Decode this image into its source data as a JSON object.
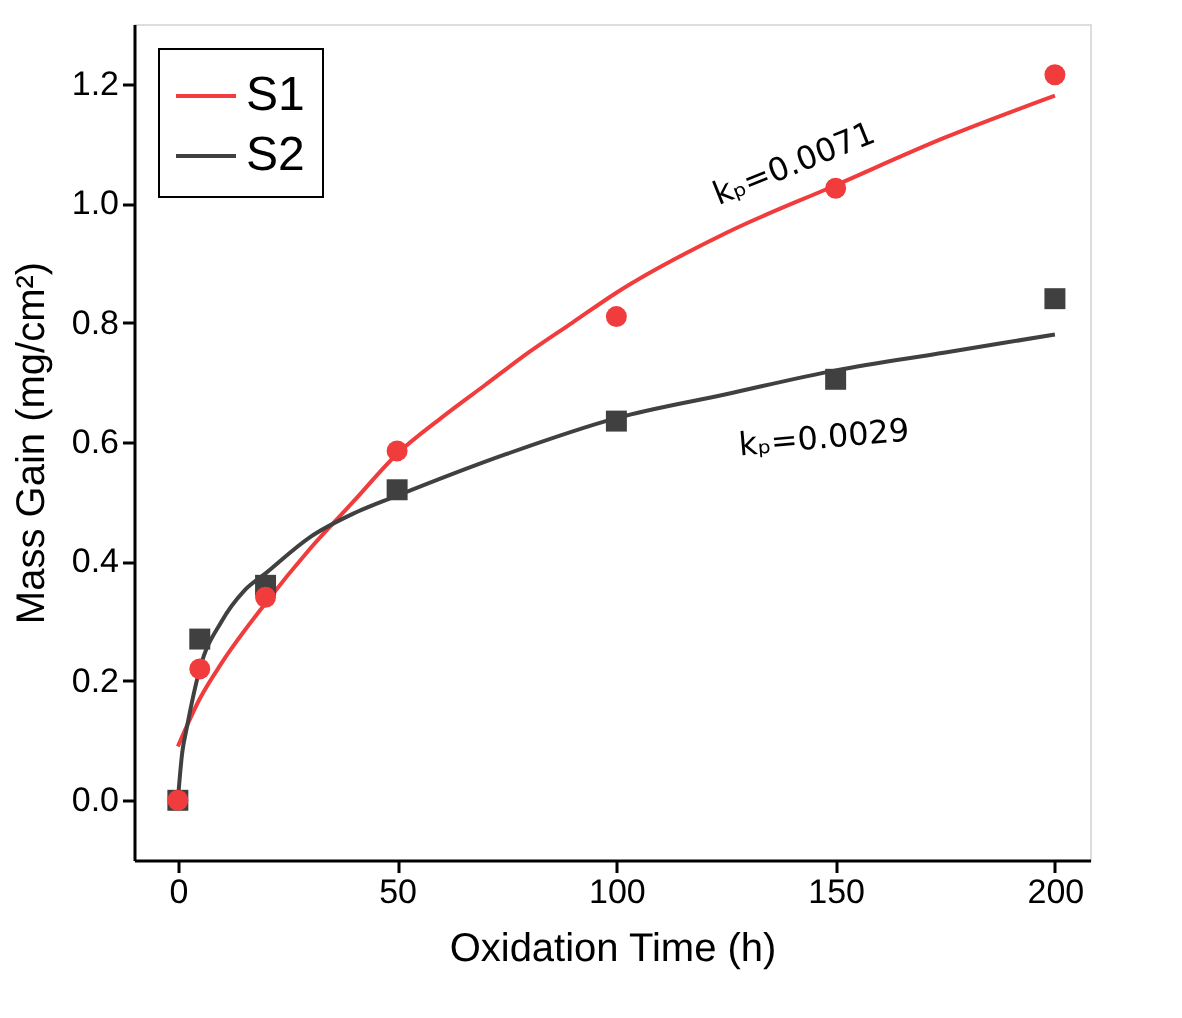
{
  "chart_data": {
    "type": "scatter",
    "xlabel": "Oxidation Time (h)",
    "ylabel": "Mass Gain (mg/cm²)",
    "xlim": [
      -10,
      208
    ],
    "ylim": [
      -0.1,
      1.3
    ],
    "xticks": [
      0,
      50,
      100,
      150,
      200
    ],
    "yticks": [
      {
        "value": 0,
        "label": "0.0"
      },
      {
        "value": 0.2,
        "label": "0.2"
      },
      {
        "value": 0.4,
        "label": "0.4"
      },
      {
        "value": 0.6,
        "label": "0.6"
      },
      {
        "value": 0.8,
        "label": "0.8"
      },
      {
        "value": 1.0,
        "label": "1.0"
      },
      {
        "value": 1.2,
        "label": "1.2"
      }
    ],
    "grid": false,
    "legend": "top left",
    "series": [
      {
        "type": "line",
        "name": "S1",
        "color": "#f03c3c",
        "marker": "none",
        "line_style": "solid",
        "x": [
          0,
          5,
          10,
          20,
          30,
          40,
          50,
          60,
          70,
          80,
          90,
          100,
          125,
          150,
          175,
          200
        ],
        "values": [
          0.09,
          0.17,
          0.23,
          0.33,
          0.42,
          0.5,
          0.58,
          0.64,
          0.695,
          0.75,
          0.8,
          0.85,
          0.95,
          1.03,
          1.11,
          1.18
        ]
      },
      {
        "type": "line",
        "name": "S2",
        "color": "#404040",
        "marker": "none",
        "line_style": "solid",
        "x": [
          0,
          1,
          2,
          5,
          10,
          15,
          20,
          30,
          40,
          50,
          75,
          100,
          125,
          150,
          175,
          200
        ],
        "values": [
          0.0,
          0.08,
          0.12,
          0.22,
          0.3,
          0.35,
          0.38,
          0.44,
          0.48,
          0.51,
          0.58,
          0.64,
          0.68,
          0.72,
          0.75,
          0.78
        ]
      },
      {
        "color": "#404040",
        "marker": "square",
        "x": [
          0,
          5,
          20,
          50,
          100,
          150,
          200
        ],
        "values": [
          0,
          0.27,
          0.36,
          0.52,
          0.635,
          0.705,
          0.84
        ]
      },
      {
        "color": "#f03c3c",
        "marker": "circle",
        "x": [
          0,
          5,
          20,
          50,
          100,
          150,
          200
        ],
        "values": [
          0,
          0.22,
          0.34,
          0.585,
          0.81,
          1.025,
          1.215
        ]
      }
    ],
    "annotations": [
      "kₚ=0.0071",
      "kₚ=0.0029"
    ]
  }
}
